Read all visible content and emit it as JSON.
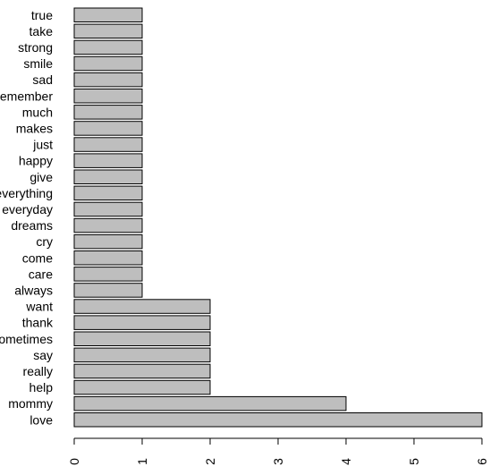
{
  "chart_data": {
    "type": "bar",
    "orientation": "horizontal",
    "title": "",
    "xlabel": "",
    "ylabel": "",
    "xlim": [
      0,
      6
    ],
    "x_ticks": [
      "0",
      "1",
      "2",
      "3",
      "4",
      "5",
      "6"
    ],
    "grid": false,
    "bar_color": "#bebebe",
    "bar_edge_color": "#000000",
    "categories": [
      "true",
      "take",
      "strong",
      "smile",
      "sad",
      "remember",
      "much",
      "makes",
      "just",
      "happy",
      "give",
      "everything",
      "everyday",
      "dreams",
      "cry",
      "come",
      "care",
      "always",
      "want",
      "thank",
      "sometimes",
      "say",
      "really",
      "help",
      "mommy",
      "love"
    ],
    "values": [
      1,
      1,
      1,
      1,
      1,
      1,
      1,
      1,
      1,
      1,
      1,
      1,
      1,
      1,
      1,
      1,
      1,
      1,
      2,
      2,
      2,
      2,
      2,
      2,
      4,
      6
    ]
  }
}
